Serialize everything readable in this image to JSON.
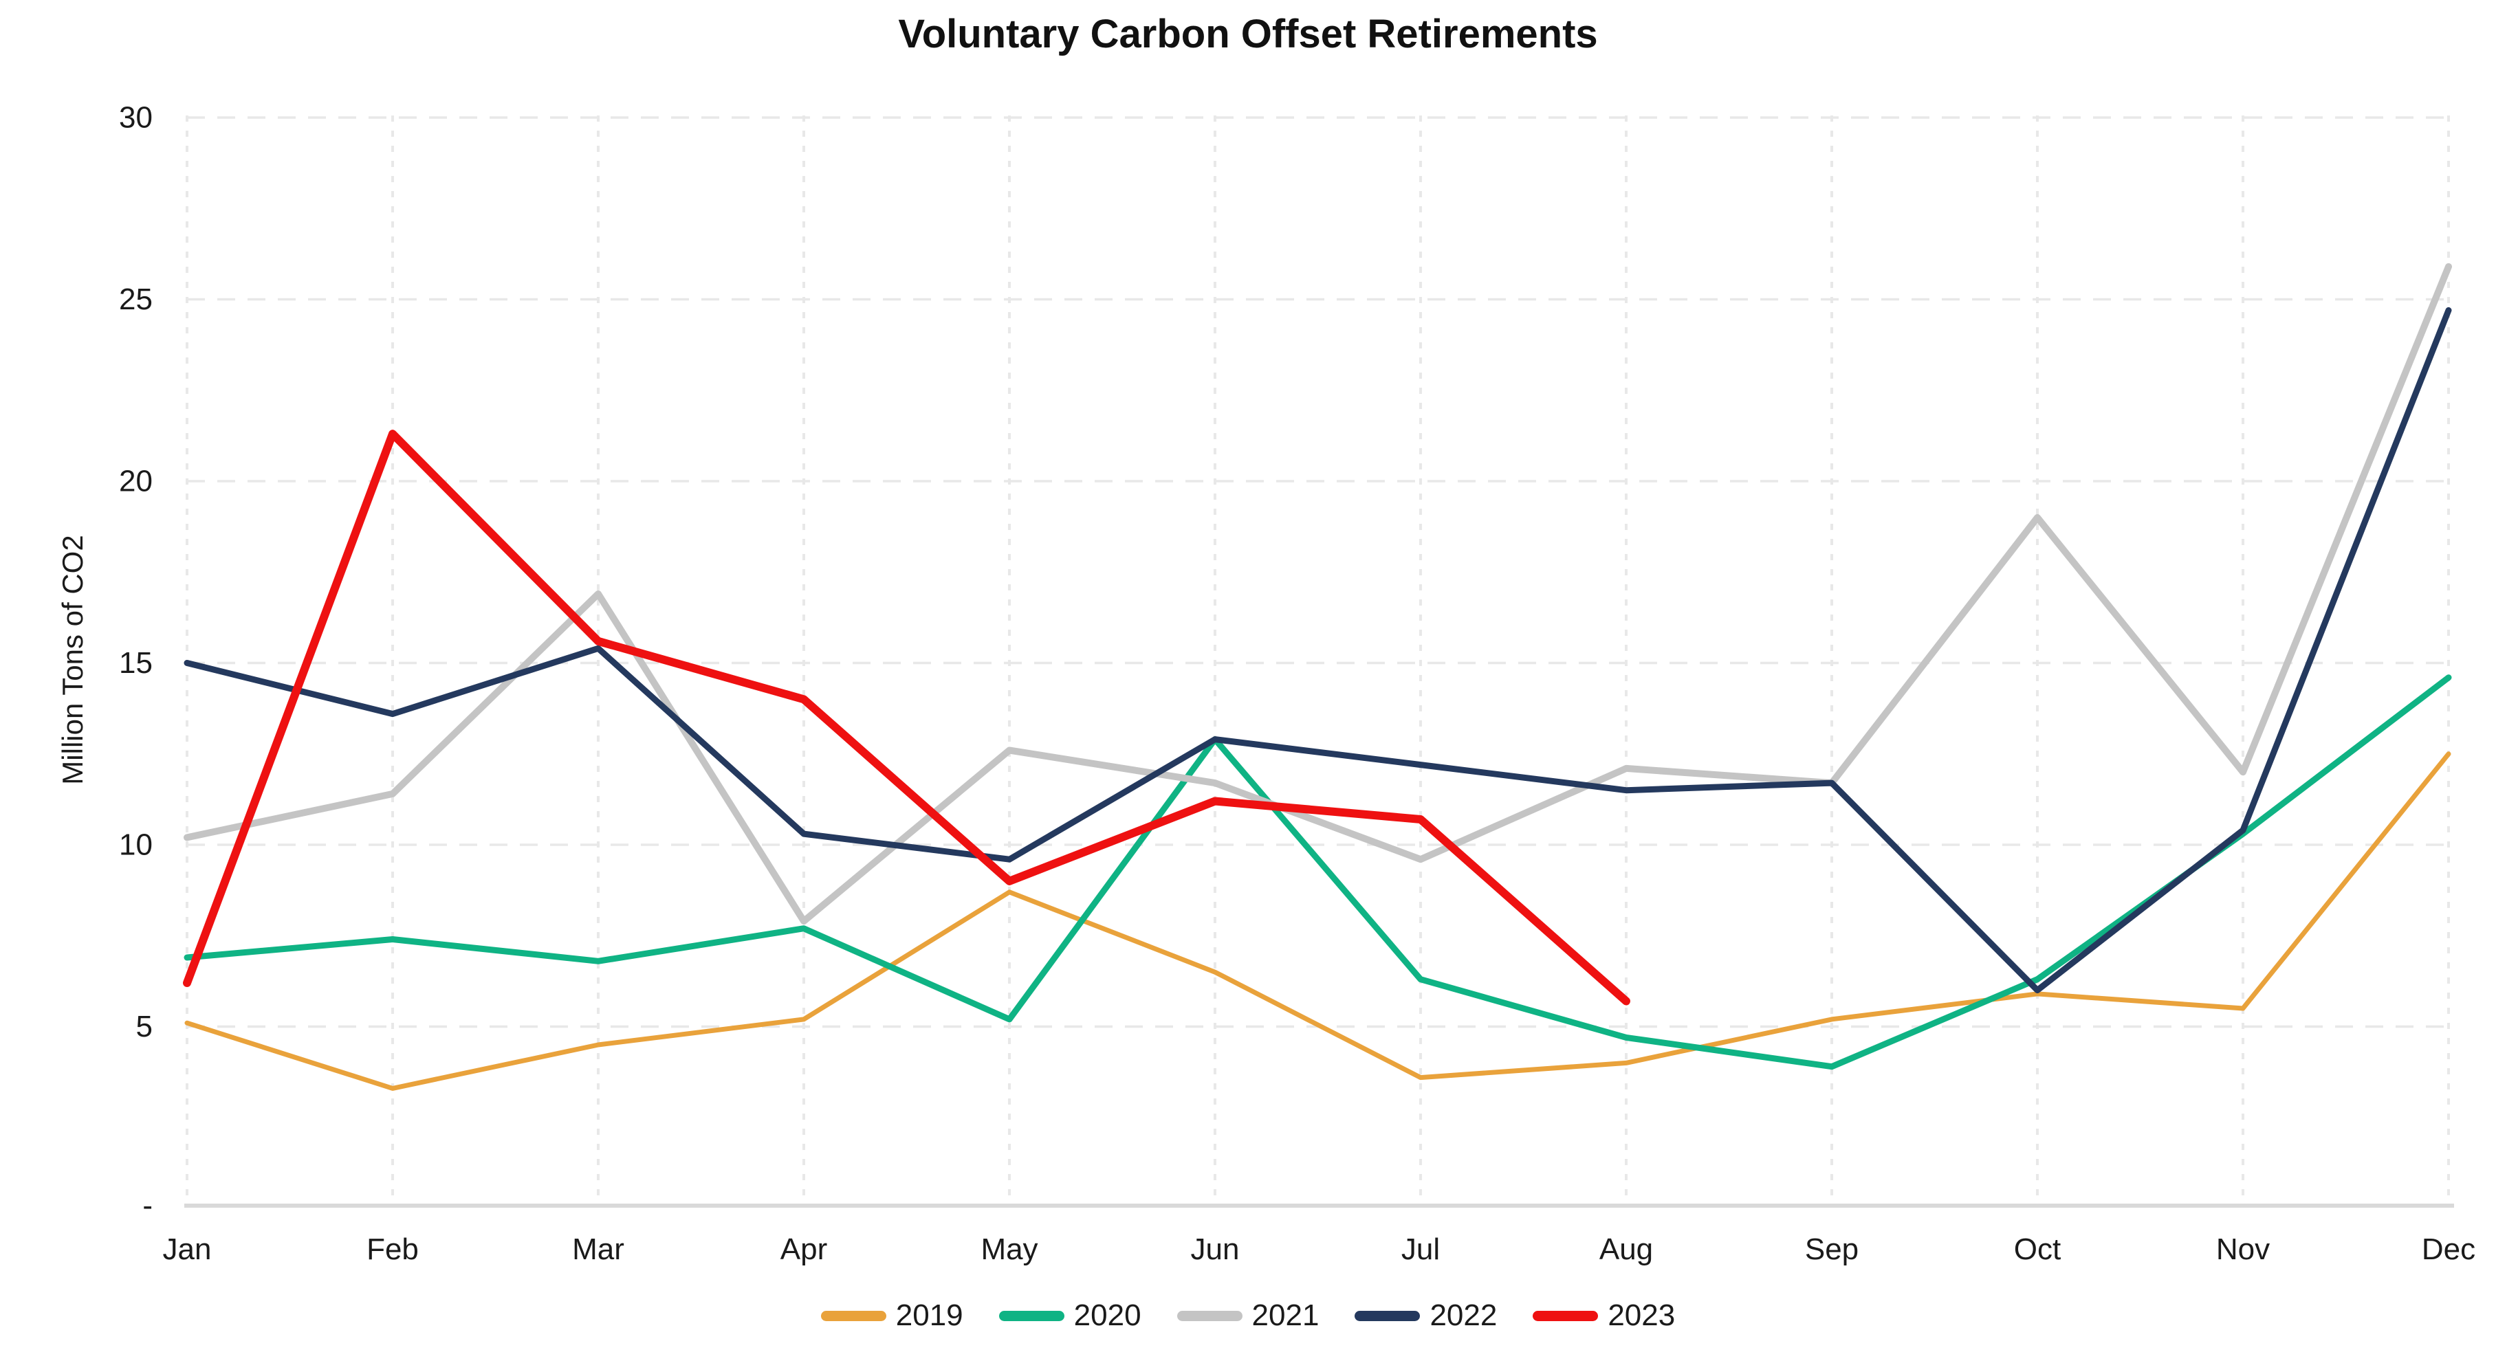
{
  "chart_data": {
    "type": "line",
    "title": "Voluntary Carbon Offset Retirements",
    "xlabel": "",
    "ylabel": "Million Tons of CO2",
    "ylim": [
      0,
      30
    ],
    "grid": true,
    "legend_position": "bottom",
    "categories": [
      "Jan",
      "Feb",
      "Mar",
      "Apr",
      "May",
      "Jun",
      "Jul",
      "Aug",
      "Sep",
      "Oct",
      "Nov",
      "Dec"
    ],
    "y_ticks": [
      {
        "label": "-",
        "value": 0
      },
      {
        "label": "5",
        "value": 5
      },
      {
        "label": "10",
        "value": 10
      },
      {
        "label": "15",
        "value": 15
      },
      {
        "label": "20",
        "value": 20
      },
      {
        "label": "25",
        "value": 25
      },
      {
        "label": "30",
        "value": 30
      }
    ],
    "series": [
      {
        "name": "2019",
        "color": "#E9A23B",
        "width": 7,
        "values": [
          5.1,
          3.3,
          4.5,
          5.2,
          8.7,
          6.5,
          3.6,
          4.0,
          5.2,
          5.9,
          5.5,
          12.5
        ]
      },
      {
        "name": "2020",
        "color": "#0FB384",
        "width": 9,
        "values": [
          6.9,
          7.4,
          6.8,
          7.7,
          5.2,
          12.9,
          6.3,
          4.7,
          3.9,
          6.3,
          10.3,
          14.6
        ]
      },
      {
        "name": "2021",
        "color": "#C4C4C4",
        "width": 10,
        "values": [
          10.2,
          11.4,
          16.9,
          7.9,
          12.6,
          11.7,
          9.6,
          12.1,
          11.7,
          19.0,
          12.0,
          25.9
        ]
      },
      {
        "name": "2022",
        "color": "#24395E",
        "width": 9,
        "values": [
          15.0,
          13.6,
          15.4,
          10.3,
          9.6,
          12.9,
          12.2,
          11.5,
          11.7,
          6.0,
          10.4,
          24.7
        ]
      },
      {
        "name": "2023",
        "color": "#EE1111",
        "width": 12,
        "values": [
          6.2,
          21.3,
          15.6,
          14.0,
          9.0,
          11.2,
          10.7,
          5.7,
          null,
          null,
          null,
          null
        ]
      }
    ],
    "colors": {
      "grid": "#E8E8E8",
      "axis_line": "#D9D9D9",
      "title_text": "#111111",
      "tick_text": "#1A1A1A"
    }
  }
}
